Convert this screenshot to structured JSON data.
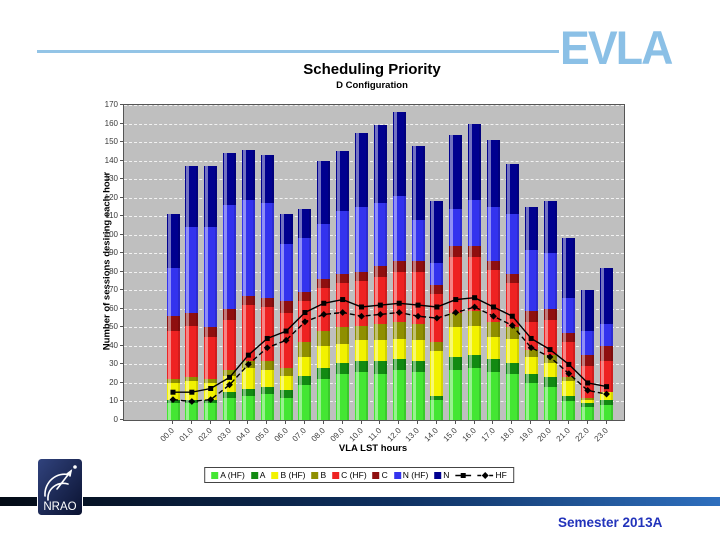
{
  "branding": {
    "evla": "EVLA",
    "evla_color": "#8bc0e6",
    "header_line_color": "#93c4e6",
    "nrao": "NRAO",
    "semester": "Semester 2013A",
    "semester_color": "#2233bb",
    "footer_gradient_left": "#040b16",
    "footer_gradient_mid": "#0e3060",
    "footer_gradient_right": "#2e6fbe"
  },
  "chart_data": {
    "type": "bar",
    "stacked": true,
    "title": "Scheduling Priority",
    "subtitle": "D Configuration",
    "xlabel": "VLA LST hours",
    "ylabel": "Number of sessions desiring each hour",
    "ylim": [
      0,
      170
    ],
    "ytick_step": 10,
    "grid": "horizontal-dashed-white",
    "plot_bg": "#bfbfbf",
    "legend_position": "bottom",
    "categories": [
      "00.0",
      "01.0",
      "02.0",
      "03.0",
      "04.0",
      "05.0",
      "06.0",
      "07.0",
      "08.0",
      "09.0",
      "10.0",
      "11.0",
      "12.0",
      "13.0",
      "14.0",
      "15.0",
      "16.0",
      "17.0",
      "18.0",
      "19.0",
      "20.0",
      "21.0",
      "22.0",
      "23.0"
    ],
    "series": [
      {
        "name": "A (HF)",
        "color": "#44e633",
        "values": [
          9,
          9,
          9,
          12,
          13,
          14,
          12,
          19,
          22,
          25,
          26,
          25,
          27,
          26,
          11,
          27,
          28,
          26,
          25,
          20,
          18,
          10,
          7,
          8
        ]
      },
      {
        "name": "A",
        "color": "#128a12",
        "values": [
          2,
          2,
          2,
          3,
          4,
          4,
          4,
          5,
          6,
          6,
          6,
          7,
          6,
          6,
          2,
          7,
          7,
          7,
          6,
          5,
          5,
          3,
          2,
          3
        ]
      },
      {
        "name": "B (HF)",
        "color": "#f2f200",
        "values": [
          9,
          10,
          9,
          9,
          11,
          9,
          8,
          10,
          12,
          10,
          11,
          11,
          11,
          11,
          24,
          16,
          16,
          12,
          13,
          9,
          8,
          8,
          2,
          4
        ]
      },
      {
        "name": "B",
        "color": "#8f8f00",
        "values": [
          2,
          2,
          2,
          3,
          4,
          5,
          4,
          8,
          8,
          9,
          8,
          9,
          9,
          9,
          5,
          8,
          8,
          8,
          6,
          4,
          4,
          2,
          1,
          0
        ]
      },
      {
        "name": "C (HF)",
        "color": "#ee2222",
        "values": [
          26,
          28,
          23,
          27,
          30,
          29,
          30,
          22,
          23,
          24,
          24,
          25,
          27,
          28,
          26,
          30,
          29,
          28,
          24,
          15,
          19,
          19,
          17,
          17
        ]
      },
      {
        "name": "C",
        "color": "#8f0f0f",
        "values": [
          8,
          7,
          5,
          6,
          5,
          5,
          6,
          5,
          5,
          5,
          5,
          6,
          6,
          6,
          5,
          6,
          6,
          5,
          5,
          6,
          6,
          5,
          6,
          8
        ]
      },
      {
        "name": "N (HF)",
        "color": "#3333ee",
        "values": [
          26,
          46,
          54,
          56,
          52,
          51,
          31,
          29,
          30,
          34,
          35,
          34,
          35,
          22,
          12,
          20,
          25,
          29,
          32,
          33,
          30,
          19,
          13,
          12
        ]
      },
      {
        "name": "N",
        "color": "#00008f",
        "values": [
          29,
          33,
          33,
          28,
          27,
          26,
          16,
          16,
          34,
          32,
          40,
          42,
          45,
          40,
          33,
          40,
          41,
          36,
          27,
          23,
          28,
          32,
          22,
          30
        ]
      }
    ],
    "line_series": [
      {
        "name": "",
        "marker": "square",
        "style": "solid",
        "color": "#000000",
        "values": [
          15,
          15,
          17,
          23,
          35,
          44,
          48,
          58,
          63,
          65,
          61,
          62,
          63,
          62,
          61,
          65,
          66,
          61,
          56,
          44,
          38,
          30,
          20,
          18
        ]
      },
      {
        "name": "HF",
        "marker": "diamond",
        "style": "dashed",
        "color": "#000000",
        "values": [
          11,
          10,
          11,
          19,
          30,
          39,
          43,
          53,
          57,
          58,
          56,
          57,
          58,
          56,
          55,
          58,
          61,
          56,
          51,
          39,
          34,
          25,
          16,
          14
        ]
      }
    ]
  }
}
